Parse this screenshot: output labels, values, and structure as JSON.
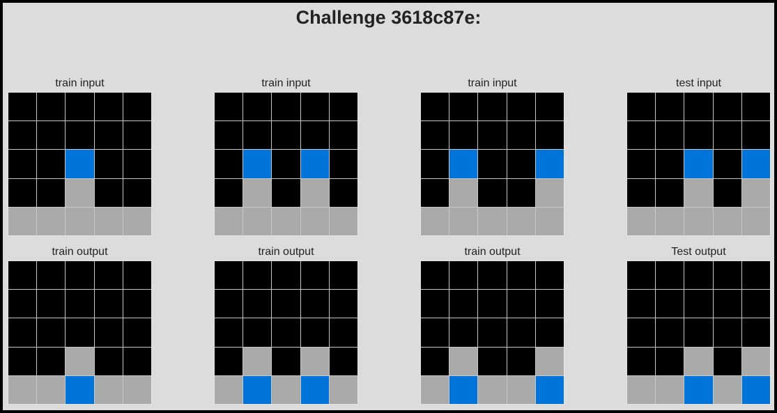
{
  "title": "Challenge 3618c87e:",
  "palette": {
    "0": "#000000",
    "1": "#0074d9",
    "5": "#aaaaaa"
  },
  "panels": [
    {
      "label": "train input",
      "grid": [
        [
          0,
          0,
          0,
          0,
          0
        ],
        [
          0,
          0,
          0,
          0,
          0
        ],
        [
          0,
          0,
          1,
          0,
          0
        ],
        [
          0,
          0,
          5,
          0,
          0
        ],
        [
          5,
          5,
          5,
          5,
          5
        ]
      ]
    },
    {
      "label": "train input",
      "grid": [
        [
          0,
          0,
          0,
          0,
          0
        ],
        [
          0,
          0,
          0,
          0,
          0
        ],
        [
          0,
          1,
          0,
          1,
          0
        ],
        [
          0,
          5,
          0,
          5,
          0
        ],
        [
          5,
          5,
          5,
          5,
          5
        ]
      ]
    },
    {
      "label": "train input",
      "grid": [
        [
          0,
          0,
          0,
          0,
          0
        ],
        [
          0,
          0,
          0,
          0,
          0
        ],
        [
          0,
          1,
          0,
          0,
          1
        ],
        [
          0,
          5,
          0,
          0,
          5
        ],
        [
          5,
          5,
          5,
          5,
          5
        ]
      ]
    },
    {
      "label": "test input",
      "grid": [
        [
          0,
          0,
          0,
          0,
          0
        ],
        [
          0,
          0,
          0,
          0,
          0
        ],
        [
          0,
          0,
          1,
          0,
          1
        ],
        [
          0,
          0,
          5,
          0,
          5
        ],
        [
          5,
          5,
          5,
          5,
          5
        ]
      ]
    },
    {
      "label": "train output",
      "grid": [
        [
          0,
          0,
          0,
          0,
          0
        ],
        [
          0,
          0,
          0,
          0,
          0
        ],
        [
          0,
          0,
          0,
          0,
          0
        ],
        [
          0,
          0,
          5,
          0,
          0
        ],
        [
          5,
          5,
          1,
          5,
          5
        ]
      ]
    },
    {
      "label": "train output",
      "grid": [
        [
          0,
          0,
          0,
          0,
          0
        ],
        [
          0,
          0,
          0,
          0,
          0
        ],
        [
          0,
          0,
          0,
          0,
          0
        ],
        [
          0,
          5,
          0,
          5,
          0
        ],
        [
          5,
          1,
          5,
          1,
          5
        ]
      ]
    },
    {
      "label": "train output",
      "grid": [
        [
          0,
          0,
          0,
          0,
          0
        ],
        [
          0,
          0,
          0,
          0,
          0
        ],
        [
          0,
          0,
          0,
          0,
          0
        ],
        [
          0,
          5,
          0,
          0,
          5
        ],
        [
          5,
          1,
          5,
          5,
          1
        ]
      ]
    },
    {
      "label": "Test output",
      "grid": [
        [
          0,
          0,
          0,
          0,
          0
        ],
        [
          0,
          0,
          0,
          0,
          0
        ],
        [
          0,
          0,
          0,
          0,
          0
        ],
        [
          0,
          0,
          5,
          0,
          5
        ],
        [
          5,
          5,
          1,
          5,
          1
        ]
      ]
    }
  ]
}
